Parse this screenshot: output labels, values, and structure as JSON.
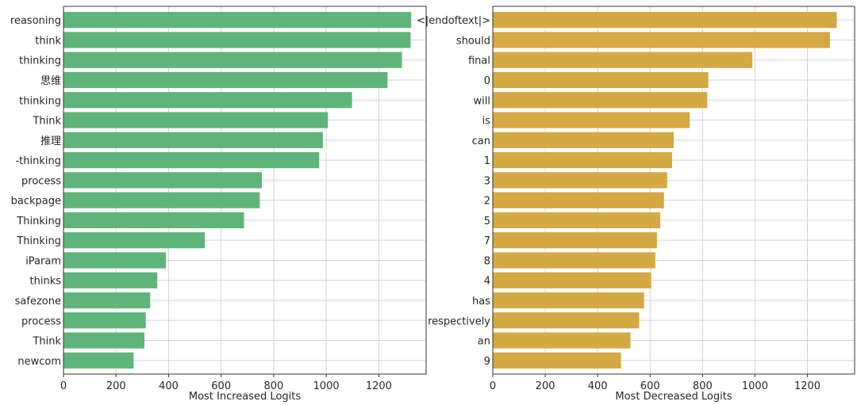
{
  "chart_data": [
    {
      "type": "bar",
      "orientation": "horizontal",
      "color": "#5fb47a",
      "xlabel": "Most Increased Logits",
      "xlim": [
        0,
        1380
      ],
      "xticks": [
        0,
        200,
        400,
        600,
        800,
        1000,
        1200
      ],
      "grid": true,
      "categories": [
        "reasoning",
        "think",
        "thinking",
        "思维",
        "thinking",
        "Think",
        "推理",
        "-thinking",
        "process",
        "backpage",
        "Thinking",
        "Thinking",
        "iParam",
        "thinks",
        "safezone",
        "process",
        "Think",
        "newcom"
      ],
      "values": [
        1323,
        1321,
        1288,
        1233,
        1098,
        1006,
        987,
        973,
        755,
        747,
        687,
        538,
        390,
        357,
        330,
        313,
        308,
        267
      ]
    },
    {
      "type": "bar",
      "orientation": "horizontal",
      "color": "#d4a843",
      "xlabel": "Most Decreased Logits",
      "xlim": [
        0,
        1380
      ],
      "xticks": [
        0,
        200,
        400,
        600,
        800,
        1000,
        1200
      ],
      "grid": true,
      "categories": [
        "<|endoftext|>",
        "should",
        "final",
        "0",
        "will",
        "is",
        "can",
        "1",
        "3",
        "2",
        "5",
        "7",
        "8",
        "4",
        "has",
        "respectively",
        "an",
        "9"
      ],
      "values": [
        1312,
        1286,
        990,
        822,
        818,
        751,
        690,
        684,
        665,
        653,
        639,
        626,
        620,
        604,
        577,
        558,
        525,
        489
      ]
    }
  ]
}
